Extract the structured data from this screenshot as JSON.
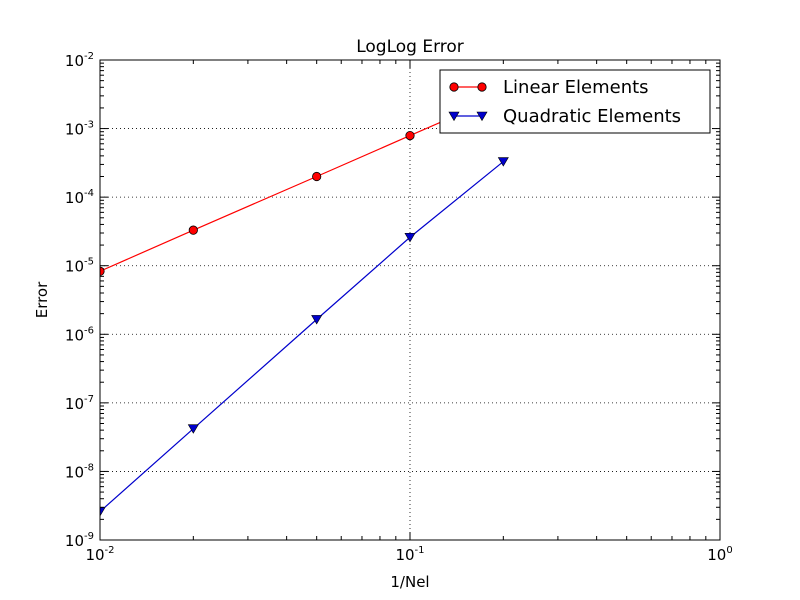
{
  "chart_data": {
    "type": "line",
    "title": "LogLog Error",
    "xlabel": "1/Nel",
    "ylabel": "Error",
    "xscale": "log",
    "yscale": "log",
    "xlim": [
      0.01,
      1
    ],
    "ylim": [
      1e-09,
      0.01
    ],
    "grid": true,
    "legend_position": "top-right",
    "x_ticks": [
      {
        "base": "10",
        "exp": "-2",
        "value": 0.01
      },
      {
        "base": "10",
        "exp": "-1",
        "value": 0.1
      },
      {
        "base": "10",
        "exp": "0",
        "value": 1
      }
    ],
    "y_ticks": [
      {
        "base": "10",
        "exp": "-9",
        "value": 1e-09
      },
      {
        "base": "10",
        "exp": "-8",
        "value": 1e-08
      },
      {
        "base": "10",
        "exp": "-7",
        "value": 1e-07
      },
      {
        "base": "10",
        "exp": "-6",
        "value": 1e-06
      },
      {
        "base": "10",
        "exp": "-5",
        "value": 1e-05
      },
      {
        "base": "10",
        "exp": "-4",
        "value": 0.0001
      },
      {
        "base": "10",
        "exp": "-3",
        "value": 0.001
      },
      {
        "base": "10",
        "exp": "-2",
        "value": 0.01
      }
    ],
    "series": [
      {
        "name": "Linear Elements",
        "color": "#ff0000",
        "marker": "circle",
        "x": [
          0.01,
          0.02,
          0.05,
          0.1,
          0.2
        ],
        "y": [
          8.3e-06,
          3.3e-05,
          0.0002,
          0.00079,
          0.0031
        ]
      },
      {
        "name": "Quadratic Elements",
        "color": "#0000cc",
        "marker": "triangle-down",
        "x": [
          0.01,
          0.02,
          0.05,
          0.1,
          0.2
        ],
        "y": [
          2.6e-09,
          4.2e-08,
          1.65e-06,
          2.6e-05,
          0.00033
        ]
      }
    ]
  }
}
